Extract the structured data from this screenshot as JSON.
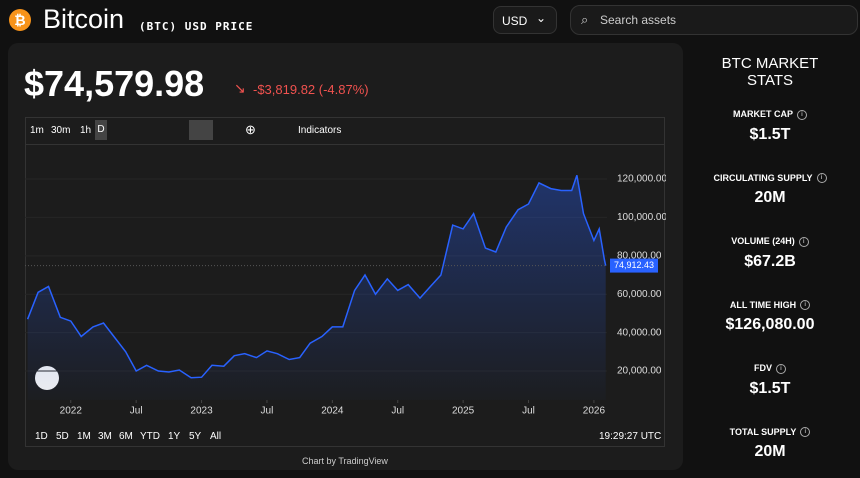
{
  "header": {
    "name": "Bitcoin",
    "ticker": "(BTC) USD PRICE",
    "currency": "USD",
    "search_placeholder": "Search assets"
  },
  "price": {
    "value": "$74,579.98",
    "change": "-$3,819.82 (-4.87%)"
  },
  "toolbar": {
    "intervals": [
      "1m",
      "30m",
      "1h",
      "D"
    ],
    "indicators": "Indicators"
  },
  "chart_data": {
    "type": "line",
    "color": "#2962ff",
    "x": [
      2021.67,
      2021.75,
      2021.83,
      2021.92,
      2022.0,
      2022.08,
      2022.17,
      2022.25,
      2022.33,
      2022.42,
      2022.5,
      2022.58,
      2022.67,
      2022.75,
      2022.83,
      2022.92,
      2023.0,
      2023.08,
      2023.17,
      2023.25,
      2023.33,
      2023.42,
      2023.5,
      2023.58,
      2023.67,
      2023.75,
      2023.83,
      2023.92,
      2024.0,
      2024.08,
      2024.17,
      2024.25,
      2024.33,
      2024.42,
      2024.5,
      2024.58,
      2024.67,
      2024.75,
      2024.83,
      2024.92,
      2025.0,
      2025.08,
      2025.17,
      2025.25,
      2025.33,
      2025.42,
      2025.5,
      2025.58,
      2025.67,
      2025.75,
      2025.83,
      2025.87,
      2025.92,
      2026.0,
      2026.04,
      2026.08,
      2026.09
    ],
    "values": [
      47000,
      61000,
      64000,
      48000,
      46000,
      38000,
      43000,
      45000,
      38000,
      30000,
      20000,
      23000,
      20000,
      19500,
      20500,
      16500,
      16800,
      23000,
      22500,
      28000,
      29000,
      27000,
      30500,
      29000,
      26000,
      27000,
      34500,
      38000,
      43000,
      43000,
      62000,
      70000,
      60000,
      68000,
      62000,
      65000,
      58000,
      64000,
      70000,
      96000,
      94000,
      102000,
      84000,
      82000,
      95000,
      104000,
      107000,
      118000,
      115000,
      114000,
      114000,
      122000,
      102000,
      88000,
      94000,
      78000,
      74912.43
    ],
    "last_price": {
      "value": 74912.43,
      "label": "74,912.43"
    },
    "xlim": [
      2021.65,
      2026.1
    ],
    "xticks": [
      2022,
      {
        "value": 2022.5,
        "label": "Jul"
      },
      2023,
      {
        "value": 2023.5,
        "label": "Jul"
      },
      2024,
      {
        "value": 2024.5,
        "label": "Jul"
      },
      2025,
      {
        "value": 2025.5,
        "label": "Jul"
      },
      2026
    ],
    "ylim": [
      4900,
      137200
    ],
    "yticks": [
      {
        "value": 20000,
        "label": "20,000.00"
      },
      {
        "value": 40000,
        "label": "40,000.00"
      },
      {
        "value": 60000,
        "label": "60,000.00"
      },
      {
        "value": 80000,
        "label": "80,000.00"
      },
      {
        "value": 100000,
        "label": "100,000.00"
      },
      {
        "value": 120000,
        "label": "120,000.00"
      }
    ]
  },
  "ranges": [
    "1D",
    "5D",
    "1M",
    "3M",
    "6M",
    "YTD",
    "1Y",
    "5Y",
    "All"
  ],
  "time": "19:29:27 UTC",
  "credit": "Chart by TradingView",
  "stats": {
    "title": "BTC MARKET STATS",
    "items": [
      {
        "label": "MARKET CAP",
        "value": "$1.5T"
      },
      {
        "label": "CIRCULATING SUPPLY",
        "value": "20M"
      },
      {
        "label": "VOLUME (24H)",
        "value": "$67.2B"
      },
      {
        "label": "ALL TIME HIGH",
        "value": "$126,080.00"
      },
      {
        "label": "FDV",
        "value": "$1.5T"
      },
      {
        "label": "TOTAL SUPPLY",
        "value": "20M"
      }
    ]
  }
}
